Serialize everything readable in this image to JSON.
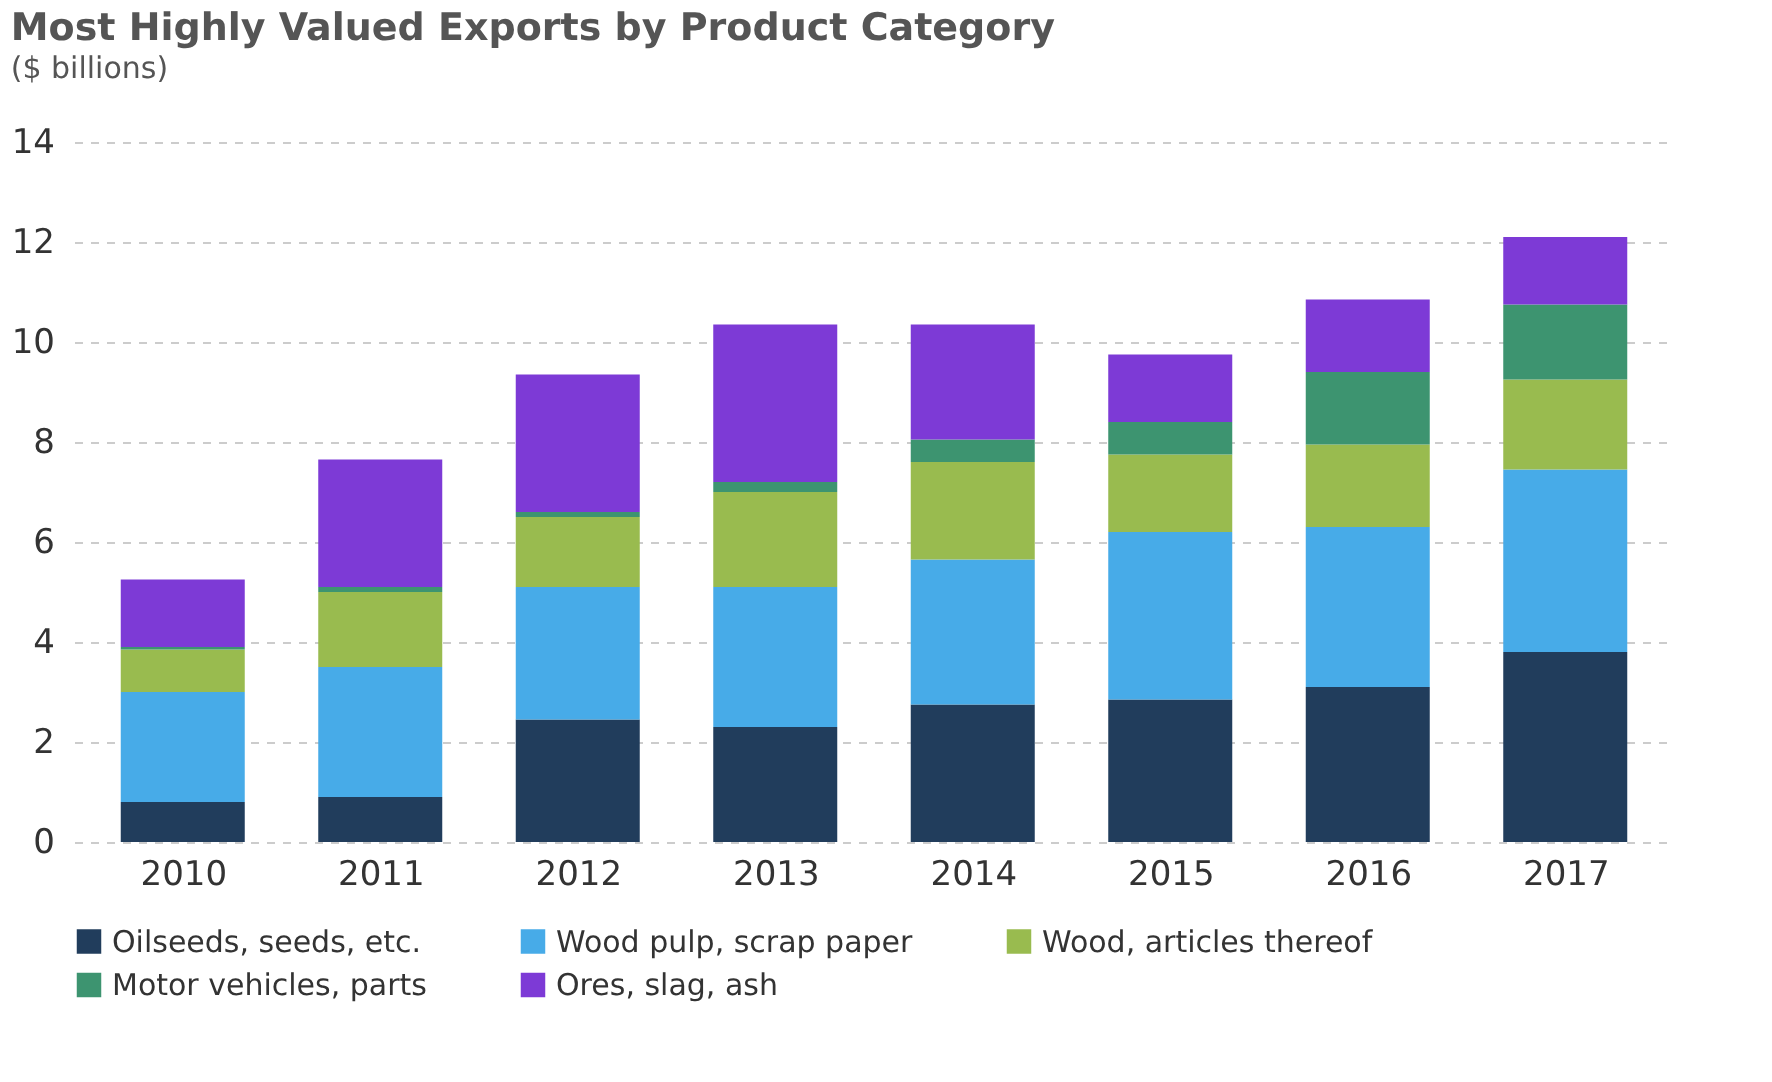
{
  "chart_data": {
    "type": "bar",
    "title": "Most Highly Valued Exports by Product Category",
    "subtitle": "($ billions)",
    "categories": [
      "2010",
      "2011",
      "2012",
      "2013",
      "2014",
      "2015",
      "2016",
      "2017"
    ],
    "stacked": true,
    "series": [
      {
        "name": "Oilseeds, seeds, etc.",
        "color": "#213d5c",
        "values": [
          0.8,
          0.9,
          2.45,
          2.3,
          2.75,
          2.85,
          3.1,
          3.8
        ]
      },
      {
        "name": "Wood pulp, scrap paper",
        "color": "#47abe8",
        "values": [
          2.2,
          2.6,
          2.65,
          2.8,
          2.9,
          3.35,
          3.2,
          3.65
        ]
      },
      {
        "name": "Wood, articles thereof",
        "color": "#99bb4f",
        "values": [
          0.85,
          1.5,
          1.4,
          1.9,
          1.95,
          1.55,
          1.65,
          1.8
        ]
      },
      {
        "name": "Motor vehicles, parts",
        "color": "#3d9470",
        "values": [
          0.05,
          0.1,
          0.1,
          0.2,
          0.45,
          0.65,
          1.45,
          1.5
        ]
      },
      {
        "name": "Ores, slag, ash",
        "color": "#7d3ad6",
        "values": [
          1.35,
          2.55,
          2.75,
          3.15,
          2.3,
          1.35,
          1.45,
          1.35
        ]
      }
    ],
    "ylim": [
      0,
      14
    ],
    "yticks": [
      0,
      2,
      4,
      6,
      8,
      10,
      12,
      14
    ],
    "grid": "y",
    "legend": "bottom"
  }
}
